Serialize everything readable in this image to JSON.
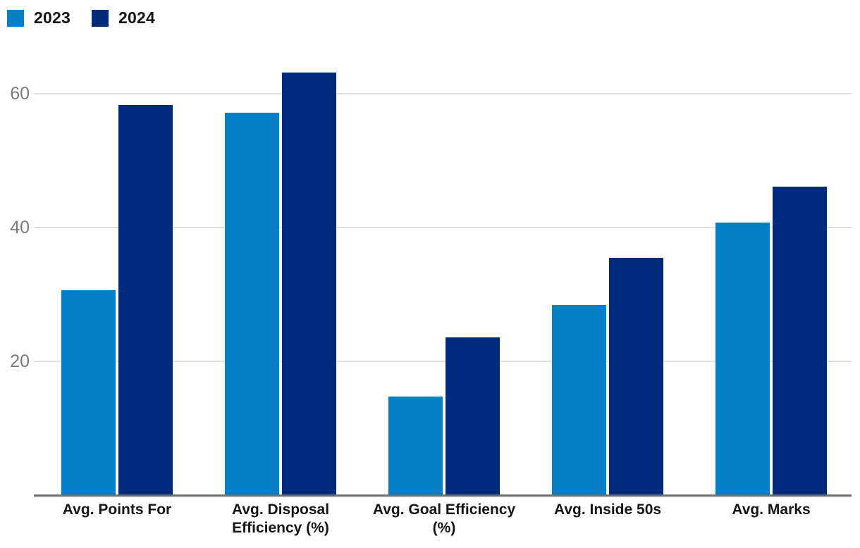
{
  "legend": {
    "items": [
      {
        "label": "2023",
        "color": "#057fc8"
      },
      {
        "label": "2024",
        "color": "#002a7c"
      }
    ]
  },
  "chart_data": {
    "type": "bar",
    "title": "",
    "categories": [
      "Avg. Points For",
      "Avg. Disposal Efficiency (%)",
      "Avg. Goal Efficiency (%)",
      "Avg. Inside 50s",
      "Avg. Marks"
    ],
    "series": [
      {
        "name": "2023",
        "color": "#057fc8",
        "values": [
          30.6,
          57.2,
          14.7,
          28.4,
          40.7
        ]
      },
      {
        "name": "2024",
        "color": "#002a7c",
        "values": [
          58.3,
          63.2,
          23.6,
          35.5,
          46.1
        ]
      }
    ],
    "yticks": [
      20,
      40,
      60
    ],
    "ylim": [
      0,
      67.7
    ],
    "grid": true,
    "legend_position": "top-left",
    "axis_color": "#6e6e6e",
    "gridline_color": "#e0e0e0",
    "tick_label_color": "#7a7a7a"
  }
}
